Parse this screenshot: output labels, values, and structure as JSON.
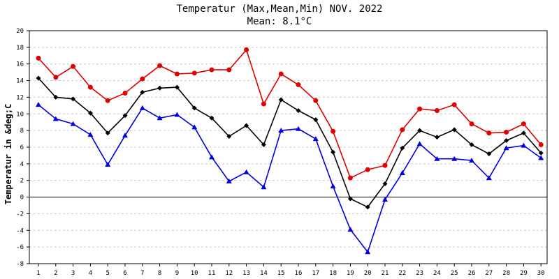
{
  "chart_data": {
    "type": "line",
    "title": "Temperatur (Max,Mean,Min) NOV. 2022",
    "subtitle": "Mean: 8.1°C",
    "xlabel": "",
    "ylabel": "Temperatur in &deg;C",
    "ylim": [
      -8,
      20
    ],
    "yticks": [
      -8,
      -6,
      -4,
      -2,
      0,
      2,
      4,
      6,
      8,
      10,
      12,
      14,
      16,
      18,
      20
    ],
    "grid": true,
    "x": [
      1,
      2,
      3,
      4,
      5,
      6,
      7,
      8,
      9,
      10,
      11,
      12,
      13,
      14,
      15,
      16,
      17,
      18,
      19,
      20,
      21,
      22,
      23,
      24,
      25,
      26,
      27,
      28,
      29,
      30
    ],
    "series": [
      {
        "color": "#e00000",
        "marker": "circle",
        "values": [
          16.7,
          14.4,
          15.7,
          13.2,
          11.6,
          12.5,
          14.2,
          15.8,
          14.8,
          14.9,
          15.3,
          15.3,
          17.7,
          11.2,
          14.8,
          13.5,
          11.6,
          7.9,
          2.3,
          3.3,
          3.8,
          8.1,
          10.6,
          10.4,
          11.1,
          8.8,
          7.7,
          7.8,
          8.8,
          6.3
        ]
      },
      {
        "color": "#000000",
        "marker": "diamond",
        "values": [
          14.3,
          12.0,
          11.8,
          10.1,
          7.7,
          9.8,
          12.6,
          13.1,
          13.2,
          10.7,
          9.5,
          7.3,
          8.6,
          6.3,
          11.7,
          10.4,
          9.3,
          5.4,
          -0.2,
          -1.2,
          1.6,
          5.9,
          8.0,
          7.2,
          8.1,
          6.3,
          5.2,
          6.8,
          7.7,
          5.3
        ]
      },
      {
        "color": "#0000e0",
        "marker": "triangle",
        "values": [
          11.1,
          9.4,
          8.8,
          7.5,
          3.9,
          7.4,
          10.7,
          9.5,
          9.9,
          8.4,
          4.8,
          1.9,
          3.0,
          1.2,
          8.0,
          8.2,
          7.0,
          1.3,
          -3.9,
          -6.6,
          -0.3,
          2.9,
          6.4,
          4.6,
          4.6,
          4.4,
          2.3,
          5.9,
          6.2,
          4.7
        ]
      }
    ]
  },
  "colors": {
    "grid": "#c8c8c8",
    "zero_line": "#000000"
  }
}
